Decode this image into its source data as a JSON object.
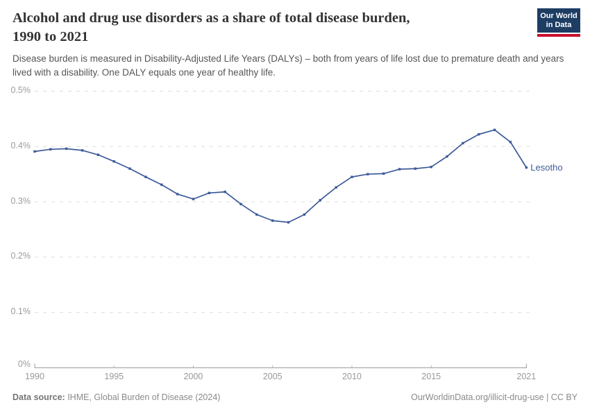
{
  "header": {
    "title_line1": "Alcohol and drug use disorders as a share of total disease burden,",
    "title_line2": "1990 to 2021",
    "subtitle": "Disease burden is measured in Disability-Adjusted Life Years (DALYs) – both from years of life lost due to premature death and years lived with a disability. One DALY equals one year of healthy life.",
    "logo": {
      "line1": "Our World",
      "line2": "in Data",
      "bg_color": "#1d3d63",
      "stripe_color": "#c8102e"
    }
  },
  "chart_data": {
    "type": "line",
    "title": "Alcohol and drug use disorders as a share of total disease burden, 1990 to 2021",
    "unit": "%",
    "xlim": [
      1990,
      2021
    ],
    "ylim": [
      0,
      0.5
    ],
    "grid": "horizontal-dashed",
    "legend_position": "end-of-line",
    "x": [
      1990,
      1991,
      1992,
      1993,
      1994,
      1995,
      1996,
      1997,
      1998,
      1999,
      2000,
      2001,
      2002,
      2003,
      2004,
      2005,
      2006,
      2007,
      2008,
      2009,
      2010,
      2011,
      2012,
      2013,
      2014,
      2015,
      2016,
      2017,
      2018,
      2019,
      2020,
      2021
    ],
    "series": [
      {
        "name": "Lesotho",
        "color": "#3c5a99",
        "values": [
          0.391,
          0.395,
          0.396,
          0.393,
          0.385,
          0.373,
          0.36,
          0.345,
          0.331,
          0.314,
          0.305,
          0.316,
          0.318,
          0.296,
          0.277,
          0.266,
          0.263,
          0.277,
          0.303,
          0.326,
          0.345,
          0.35,
          0.351,
          0.359,
          0.36,
          0.363,
          0.382,
          0.406,
          0.422,
          0.43,
          0.408,
          0.362
        ]
      }
    ],
    "xticks": [
      1990,
      1995,
      2000,
      2005,
      2010,
      2015,
      2021
    ],
    "ytick_values": [
      0,
      0.1,
      0.2,
      0.3,
      0.4,
      0.5
    ],
    "ytick_labels": [
      "0%",
      "0.1%",
      "0.2%",
      "0.3%",
      "0.4%",
      "0.5%"
    ]
  },
  "footer": {
    "source_label": "Data source:",
    "source_text": " IHME, Global Burden of Disease (2024)",
    "link_text": "OurWorldinData.org/illicit-drug-use | CC BY"
  }
}
